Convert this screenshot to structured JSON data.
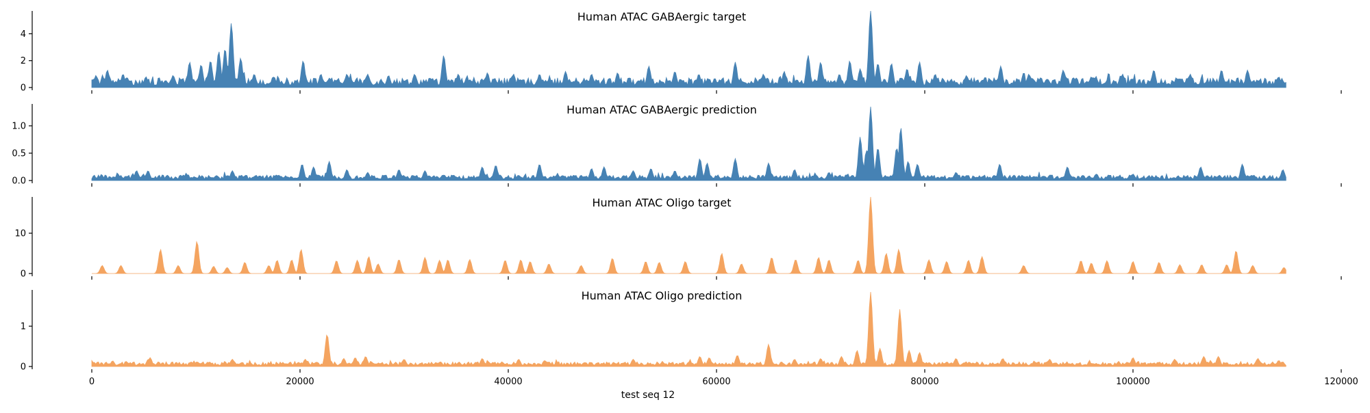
{
  "chart_data": {
    "type": "area",
    "xlabel": "test seq 12",
    "x_range": [
      0,
      114688
    ],
    "xlim": [
      0,
      120000
    ],
    "x_ticks": [
      0,
      20000,
      40000,
      60000,
      80000,
      100000,
      120000
    ],
    "panels": [
      {
        "title": "Human ATAC GABAergic target",
        "color": "#4682b4",
        "ylim": [
          0,
          5.7
        ],
        "y_ticks": [
          0,
          2,
          4
        ],
        "baseline": 0.5,
        "peaks": [
          [
            400,
            0.9
          ],
          [
            1500,
            1.3
          ],
          [
            3000,
            1.0
          ],
          [
            5200,
            0.8
          ],
          [
            7800,
            0.9
          ],
          [
            9500,
            1.0
          ],
          [
            9400,
            1.9
          ],
          [
            10500,
            1.7
          ],
          [
            11400,
            2.0
          ],
          [
            12200,
            2.7
          ],
          [
            12800,
            2.9
          ],
          [
            13400,
            4.8
          ],
          [
            14300,
            2.2
          ],
          [
            15600,
            1.0
          ],
          [
            17500,
            0.8
          ],
          [
            20300,
            2.0
          ],
          [
            22000,
            1.0
          ],
          [
            24500,
            1.0
          ],
          [
            26500,
            1.0
          ],
          [
            28500,
            0.9
          ],
          [
            31000,
            1.0
          ],
          [
            33800,
            2.4
          ],
          [
            35200,
            1.0
          ],
          [
            38000,
            1.1
          ],
          [
            40500,
            1.0
          ],
          [
            43000,
            1.0
          ],
          [
            45500,
            1.2
          ],
          [
            48000,
            1.0
          ],
          [
            50500,
            1.1
          ],
          [
            53500,
            1.6
          ],
          [
            56000,
            1.2
          ],
          [
            58300,
            1.0
          ],
          [
            61800,
            1.9
          ],
          [
            64500,
            1.0
          ],
          [
            66500,
            1.2
          ],
          [
            68800,
            2.4
          ],
          [
            70000,
            1.9
          ],
          [
            71800,
            1.0
          ],
          [
            72800,
            2.0
          ],
          [
            73800,
            1.4
          ],
          [
            74800,
            5.7
          ],
          [
            75500,
            1.8
          ],
          [
            76800,
            1.8
          ],
          [
            78300,
            1.4
          ],
          [
            79500,
            1.9
          ],
          [
            81000,
            1.0
          ],
          [
            84000,
            0.9
          ],
          [
            87300,
            1.6
          ],
          [
            90000,
            1.0
          ],
          [
            93300,
            1.3
          ],
          [
            96000,
            0.8
          ],
          [
            99000,
            1.0
          ],
          [
            102000,
            1.3
          ],
          [
            105500,
            1.0
          ],
          [
            108500,
            1.3
          ],
          [
            111000,
            1.3
          ],
          [
            114000,
            0.8
          ]
        ]
      },
      {
        "title": "Human ATAC GABAergic prediction",
        "color": "#4682b4",
        "ylim": [
          0,
          1.4
        ],
        "y_ticks": [
          "0.0",
          "0.5",
          "1.0"
        ],
        "baseline": 0.07,
        "peaks": [
          [
            2500,
            0.12
          ],
          [
            4300,
            0.18
          ],
          [
            5400,
            0.18
          ],
          [
            13500,
            0.18
          ],
          [
            20200,
            0.3
          ],
          [
            21300,
            0.25
          ],
          [
            22800,
            0.35
          ],
          [
            24500,
            0.2
          ],
          [
            26500,
            0.15
          ],
          [
            29500,
            0.2
          ],
          [
            32000,
            0.18
          ],
          [
            37500,
            0.25
          ],
          [
            38800,
            0.28
          ],
          [
            43000,
            0.3
          ],
          [
            48000,
            0.22
          ],
          [
            49200,
            0.25
          ],
          [
            52000,
            0.18
          ],
          [
            53700,
            0.22
          ],
          [
            56000,
            0.18
          ],
          [
            58400,
            0.4
          ],
          [
            59100,
            0.32
          ],
          [
            61800,
            0.4
          ],
          [
            65000,
            0.32
          ],
          [
            67500,
            0.2
          ],
          [
            70800,
            0.15
          ],
          [
            73800,
            0.8
          ],
          [
            74400,
            0.55
          ],
          [
            74800,
            1.35
          ],
          [
            75500,
            0.6
          ],
          [
            77300,
            0.6
          ],
          [
            77700,
            0.97
          ],
          [
            78400,
            0.35
          ],
          [
            79300,
            0.3
          ],
          [
            83000,
            0.15
          ],
          [
            87200,
            0.3
          ],
          [
            93700,
            0.25
          ],
          [
            96500,
            0.12
          ],
          [
            100000,
            0.12
          ],
          [
            106500,
            0.25
          ],
          [
            110500,
            0.3
          ],
          [
            114400,
            0.2
          ]
        ]
      },
      {
        "title": "Human ATAC Oligo target",
        "color": "#f4a460",
        "ylim": [
          0,
          19
        ],
        "y_ticks": [
          0,
          10
        ],
        "baseline": 0.0,
        "peaks": [
          [
            1000,
            2.0
          ],
          [
            2800,
            2.0
          ],
          [
            6600,
            6.0
          ],
          [
            8300,
            2.0
          ],
          [
            10100,
            8.0
          ],
          [
            11700,
            1.8
          ],
          [
            13000,
            1.5
          ],
          [
            14700,
            2.8
          ],
          [
            17000,
            2.0
          ],
          [
            17800,
            3.3
          ],
          [
            19200,
            3.4
          ],
          [
            20100,
            6.0
          ],
          [
            23500,
            3.2
          ],
          [
            25500,
            3.3
          ],
          [
            26600,
            4.2
          ],
          [
            27500,
            2.4
          ],
          [
            29500,
            3.5
          ],
          [
            32000,
            4.0
          ],
          [
            33400,
            3.3
          ],
          [
            34200,
            3.4
          ],
          [
            36300,
            3.5
          ],
          [
            39700,
            3.3
          ],
          [
            41200,
            3.4
          ],
          [
            42100,
            3.0
          ],
          [
            43900,
            2.4
          ],
          [
            47000,
            2.0
          ],
          [
            50000,
            3.8
          ],
          [
            53200,
            3.0
          ],
          [
            54500,
            2.8
          ],
          [
            57000,
            3.0
          ],
          [
            60500,
            5.0
          ],
          [
            62400,
            2.4
          ],
          [
            65300,
            4.0
          ],
          [
            67600,
            3.5
          ],
          [
            69800,
            4.0
          ],
          [
            70800,
            3.4
          ],
          [
            73600,
            3.3
          ],
          [
            74800,
            19.0
          ],
          [
            76300,
            5.0
          ],
          [
            77500,
            6.0
          ],
          [
            80400,
            3.4
          ],
          [
            82100,
            3.0
          ],
          [
            84200,
            3.3
          ],
          [
            85500,
            4.2
          ],
          [
            89500,
            2.0
          ],
          [
            95000,
            3.2
          ],
          [
            96000,
            2.6
          ],
          [
            97500,
            3.2
          ],
          [
            100000,
            3.0
          ],
          [
            102500,
            2.8
          ],
          [
            104500,
            2.2
          ],
          [
            106600,
            2.2
          ],
          [
            109000,
            2.2
          ],
          [
            109900,
            5.7
          ],
          [
            111500,
            2.0
          ],
          [
            114500,
            1.5
          ]
        ]
      },
      {
        "title": "Human ATAC Oligo prediction",
        "color": "#f4a460",
        "ylim": [
          0,
          1.9
        ],
        "y_ticks": [
          0,
          1
        ],
        "baseline": 0.08,
        "peaks": [
          [
            2000,
            0.14
          ],
          [
            5600,
            0.22
          ],
          [
            13500,
            0.18
          ],
          [
            20500,
            0.18
          ],
          [
            22600,
            0.8
          ],
          [
            24200,
            0.2
          ],
          [
            25300,
            0.22
          ],
          [
            26300,
            0.25
          ],
          [
            30000,
            0.18
          ],
          [
            37500,
            0.2
          ],
          [
            41000,
            0.18
          ],
          [
            43500,
            0.15
          ],
          [
            52000,
            0.18
          ],
          [
            58400,
            0.25
          ],
          [
            59300,
            0.22
          ],
          [
            62000,
            0.28
          ],
          [
            65000,
            0.55
          ],
          [
            67500,
            0.18
          ],
          [
            70000,
            0.2
          ],
          [
            72000,
            0.25
          ],
          [
            73500,
            0.4
          ],
          [
            74800,
            1.85
          ],
          [
            75700,
            0.45
          ],
          [
            77600,
            1.42
          ],
          [
            78500,
            0.4
          ],
          [
            79500,
            0.35
          ],
          [
            83000,
            0.2
          ],
          [
            87500,
            0.2
          ],
          [
            92000,
            0.18
          ],
          [
            100000,
            0.22
          ],
          [
            104000,
            0.18
          ],
          [
            106800,
            0.25
          ],
          [
            108200,
            0.25
          ],
          [
            112000,
            0.2
          ],
          [
            114000,
            0.15
          ]
        ]
      }
    ]
  }
}
